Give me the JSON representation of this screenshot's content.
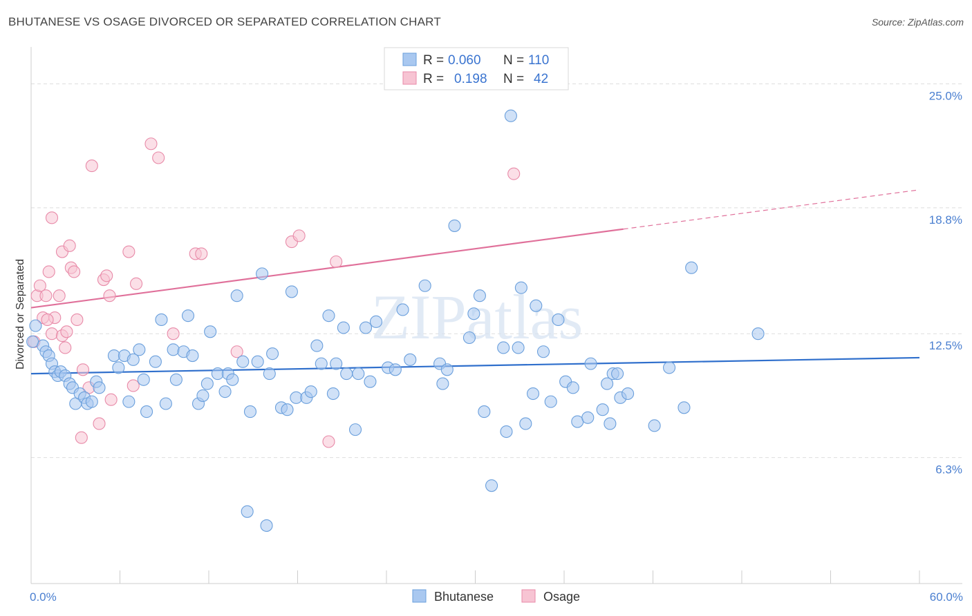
{
  "title": "BHUTANESE VS OSAGE DIVORCED OR SEPARATED CORRELATION CHART",
  "source": "Source: ZipAtlas.com",
  "colors": {
    "bhutanese_fill": "#a9c8f0",
    "bhutanese_stroke": "#6a9fdc",
    "bhutanese_line": "#2f6fcc",
    "osage_fill": "#f7c4d3",
    "osage_stroke": "#e88aa8",
    "osage_line": "#e0709a",
    "tick_text": "#4a7fd0",
    "grid": "#dddddd"
  },
  "legend": {
    "rows": [
      {
        "series": "Bhutanese",
        "r_label": "R =",
        "r_value": "0.060",
        "n_label": "N =",
        "n_value": "110"
      },
      {
        "series": "Osage",
        "r_label": "R =",
        "r_value": "0.198",
        "n_label": "N =",
        "n_value": "42"
      }
    ]
  },
  "chart_data": {
    "type": "scatter",
    "title": "BHUTANESE VS OSAGE DIVORCED OR SEPARATED CORRELATION CHART",
    "xlabel": "",
    "ylabel": "Divorced or Separated",
    "xlim": [
      0,
      60
    ],
    "ylim": [
      0,
      26.5
    ],
    "x_tick_labels": [
      "0.0%",
      "60.0%"
    ],
    "y_ticks": [
      6.3,
      12.5,
      18.8,
      25.0
    ],
    "y_tick_labels": [
      "6.3%",
      "12.5%",
      "18.8%",
      "25.0%"
    ],
    "watermark": "ZIPatlas",
    "series": [
      {
        "name": "Bhutanese",
        "R": 0.06,
        "N": 110,
        "trend": {
          "x0": 0,
          "y0": 10.5,
          "x1": 60,
          "y1": 11.3,
          "solid_until": 60
        },
        "points": [
          [
            0.3,
            12.9
          ],
          [
            0.8,
            11.9
          ],
          [
            1.0,
            11.6
          ],
          [
            1.2,
            11.4
          ],
          [
            1.4,
            11.0
          ],
          [
            1.6,
            10.6
          ],
          [
            1.8,
            10.4
          ],
          [
            2.0,
            10.6
          ],
          [
            2.3,
            10.4
          ],
          [
            2.6,
            10.0
          ],
          [
            2.8,
            9.8
          ],
          [
            3.0,
            9.0
          ],
          [
            3.3,
            9.5
          ],
          [
            3.6,
            9.3
          ],
          [
            3.8,
            9.0
          ],
          [
            4.1,
            9.1
          ],
          [
            4.4,
            10.1
          ],
          [
            4.6,
            9.8
          ],
          [
            5.6,
            11.4
          ],
          [
            5.9,
            10.8
          ],
          [
            6.3,
            11.4
          ],
          [
            6.6,
            9.1
          ],
          [
            6.9,
            11.2
          ],
          [
            7.3,
            11.7
          ],
          [
            7.6,
            10.2
          ],
          [
            7.8,
            8.6
          ],
          [
            8.4,
            11.1
          ],
          [
            8.8,
            13.2
          ],
          [
            9.1,
            9.0
          ],
          [
            9.6,
            11.7
          ],
          [
            9.8,
            10.2
          ],
          [
            10.3,
            11.6
          ],
          [
            10.6,
            13.4
          ],
          [
            10.9,
            11.4
          ],
          [
            11.3,
            9.0
          ],
          [
            11.6,
            9.4
          ],
          [
            11.9,
            10.0
          ],
          [
            12.1,
            12.6
          ],
          [
            12.6,
            10.5
          ],
          [
            13.1,
            9.6
          ],
          [
            13.3,
            10.5
          ],
          [
            13.6,
            10.2
          ],
          [
            13.9,
            14.4
          ],
          [
            14.3,
            11.1
          ],
          [
            14.6,
            3.6
          ],
          [
            14.8,
            8.6
          ],
          [
            15.3,
            11.1
          ],
          [
            15.6,
            15.5
          ],
          [
            15.9,
            2.9
          ],
          [
            16.1,
            10.5
          ],
          [
            16.3,
            11.5
          ],
          [
            16.9,
            8.8
          ],
          [
            17.3,
            8.7
          ],
          [
            17.6,
            14.6
          ],
          [
            17.9,
            9.3
          ],
          [
            18.6,
            9.3
          ],
          [
            18.9,
            9.6
          ],
          [
            19.3,
            11.9
          ],
          [
            19.6,
            11.0
          ],
          [
            20.1,
            13.4
          ],
          [
            20.4,
            9.5
          ],
          [
            20.6,
            11.0
          ],
          [
            21.1,
            12.8
          ],
          [
            21.3,
            10.5
          ],
          [
            21.9,
            7.7
          ],
          [
            22.1,
            10.5
          ],
          [
            22.6,
            12.8
          ],
          [
            22.9,
            10.1
          ],
          [
            23.3,
            13.1
          ],
          [
            24.1,
            10.8
          ],
          [
            24.6,
            10.7
          ],
          [
            25.1,
            13.7
          ],
          [
            25.6,
            11.2
          ],
          [
            26.6,
            14.9
          ],
          [
            27.6,
            11.0
          ],
          [
            27.8,
            10.0
          ],
          [
            28.1,
            10.7
          ],
          [
            28.6,
            17.9
          ],
          [
            29.6,
            12.3
          ],
          [
            29.9,
            13.5
          ],
          [
            30.3,
            14.4
          ],
          [
            30.6,
            8.6
          ],
          [
            31.1,
            4.9
          ],
          [
            31.9,
            11.8
          ],
          [
            32.1,
            7.6
          ],
          [
            32.4,
            23.4
          ],
          [
            32.9,
            11.8
          ],
          [
            33.1,
            14.8
          ],
          [
            33.4,
            8.0
          ],
          [
            33.9,
            9.5
          ],
          [
            34.1,
            13.9
          ],
          [
            34.6,
            11.6
          ],
          [
            35.1,
            9.1
          ],
          [
            35.6,
            13.2
          ],
          [
            36.1,
            10.1
          ],
          [
            36.6,
            9.8
          ],
          [
            36.9,
            8.1
          ],
          [
            37.6,
            8.3
          ],
          [
            37.8,
            11.0
          ],
          [
            38.6,
            8.7
          ],
          [
            38.9,
            10.0
          ],
          [
            39.1,
            8.0
          ],
          [
            39.3,
            10.5
          ],
          [
            39.8,
            9.3
          ],
          [
            39.6,
            10.5
          ],
          [
            40.3,
            9.5
          ],
          [
            42.1,
            7.9
          ],
          [
            43.1,
            10.8
          ],
          [
            44.1,
            8.8
          ],
          [
            44.6,
            15.8
          ],
          [
            49.1,
            12.5
          ],
          [
            0.1,
            12.1
          ]
        ]
      },
      {
        "name": "Osage",
        "R": 0.198,
        "N": 42,
        "trend": {
          "x0": 0,
          "y0": 13.8,
          "x1": 60,
          "y1": 19.7,
          "solid_until": 40
        },
        "points": [
          [
            0.2,
            12.1
          ],
          [
            0.4,
            14.4
          ],
          [
            0.6,
            14.9
          ],
          [
            0.8,
            13.3
          ],
          [
            1.0,
            14.4
          ],
          [
            1.2,
            15.6
          ],
          [
            1.4,
            12.5
          ],
          [
            1.4,
            18.3
          ],
          [
            1.6,
            13.3
          ],
          [
            1.9,
            14.4
          ],
          [
            2.1,
            12.4
          ],
          [
            2.1,
            16.6
          ],
          [
            2.3,
            11.8
          ],
          [
            2.4,
            12.6
          ],
          [
            2.6,
            16.9
          ],
          [
            2.7,
            15.8
          ],
          [
            2.9,
            15.6
          ],
          [
            3.1,
            13.2
          ],
          [
            3.5,
            10.7
          ],
          [
            3.9,
            9.8
          ],
          [
            4.1,
            20.9
          ],
          [
            4.6,
            8.0
          ],
          [
            4.9,
            15.2
          ],
          [
            5.1,
            15.4
          ],
          [
            5.3,
            14.4
          ],
          [
            5.4,
            9.2
          ],
          [
            6.6,
            16.6
          ],
          [
            6.9,
            9.9
          ],
          [
            7.1,
            15.0
          ],
          [
            8.1,
            22.0
          ],
          [
            8.6,
            21.3
          ],
          [
            9.6,
            12.5
          ],
          [
            11.1,
            16.5
          ],
          [
            11.5,
            16.5
          ],
          [
            13.9,
            11.6
          ],
          [
            17.6,
            17.1
          ],
          [
            18.1,
            17.4
          ],
          [
            20.1,
            7.1
          ],
          [
            20.6,
            16.1
          ],
          [
            32.6,
            20.5
          ],
          [
            3.4,
            7.3
          ],
          [
            1.1,
            13.2
          ]
        ]
      }
    ]
  }
}
